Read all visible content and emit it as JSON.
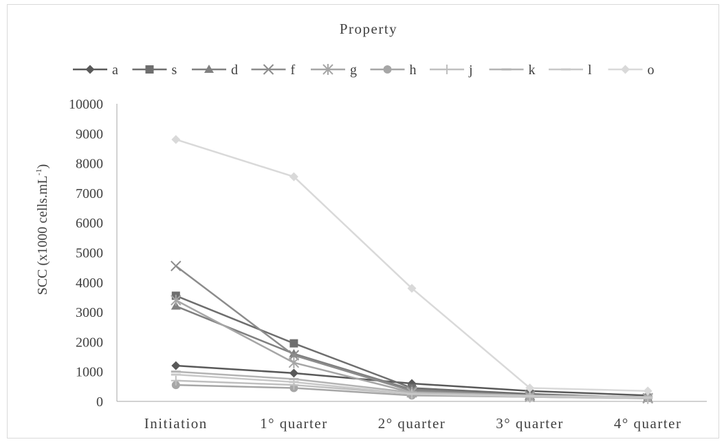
{
  "chart_data": {
    "type": "line",
    "title": "Property",
    "xlabel": "",
    "ylabel": "SCC (x1000 cells.mL",
    "ylabel_sup": "-1",
    "ylabel_close": ")",
    "categories": [
      "Initiation",
      "1° quarter",
      "2° quarter",
      "3° quarter",
      "4° quarter"
    ],
    "ylim": [
      0,
      10000
    ],
    "yticks": [
      0,
      1000,
      2000,
      3000,
      4000,
      5000,
      6000,
      7000,
      8000,
      9000,
      10000
    ],
    "grid": false,
    "legend_position": "top",
    "series": [
      {
        "name": "a",
        "marker": "diamond",
        "color": "#595959",
        "values": [
          1200,
          950,
          600,
          350,
          200
        ]
      },
      {
        "name": "s",
        "marker": "square",
        "color": "#6e6e6e",
        "values": [
          3550,
          1950,
          450,
          250,
          120
        ]
      },
      {
        "name": "d",
        "marker": "triangle",
        "color": "#808080",
        "values": [
          3200,
          1600,
          400,
          200,
          100
        ]
      },
      {
        "name": "f",
        "marker": "x",
        "color": "#8c8c8c",
        "values": [
          4550,
          1550,
          350,
          200,
          110
        ]
      },
      {
        "name": "g",
        "marker": "star",
        "color": "#a6a6a6",
        "values": [
          3400,
          1300,
          300,
          150,
          100
        ]
      },
      {
        "name": "h",
        "marker": "circle",
        "color": "#a6a6a6",
        "values": [
          550,
          450,
          200,
          150,
          120
        ]
      },
      {
        "name": "j",
        "marker": "plus",
        "color": "#bfbfbf",
        "values": [
          700,
          550,
          250,
          150,
          100
        ]
      },
      {
        "name": "k",
        "marker": "dash",
        "color": "#b3b3b3",
        "values": [
          1000,
          750,
          300,
          200,
          150
        ]
      },
      {
        "name": "l",
        "marker": "dash",
        "color": "#c8c8c8",
        "values": [
          900,
          650,
          250,
          180,
          130
        ]
      },
      {
        "name": "o",
        "marker": "diamond",
        "color": "#d9d9d9",
        "values": [
          8800,
          7550,
          3800,
          450,
          350
        ]
      }
    ]
  }
}
